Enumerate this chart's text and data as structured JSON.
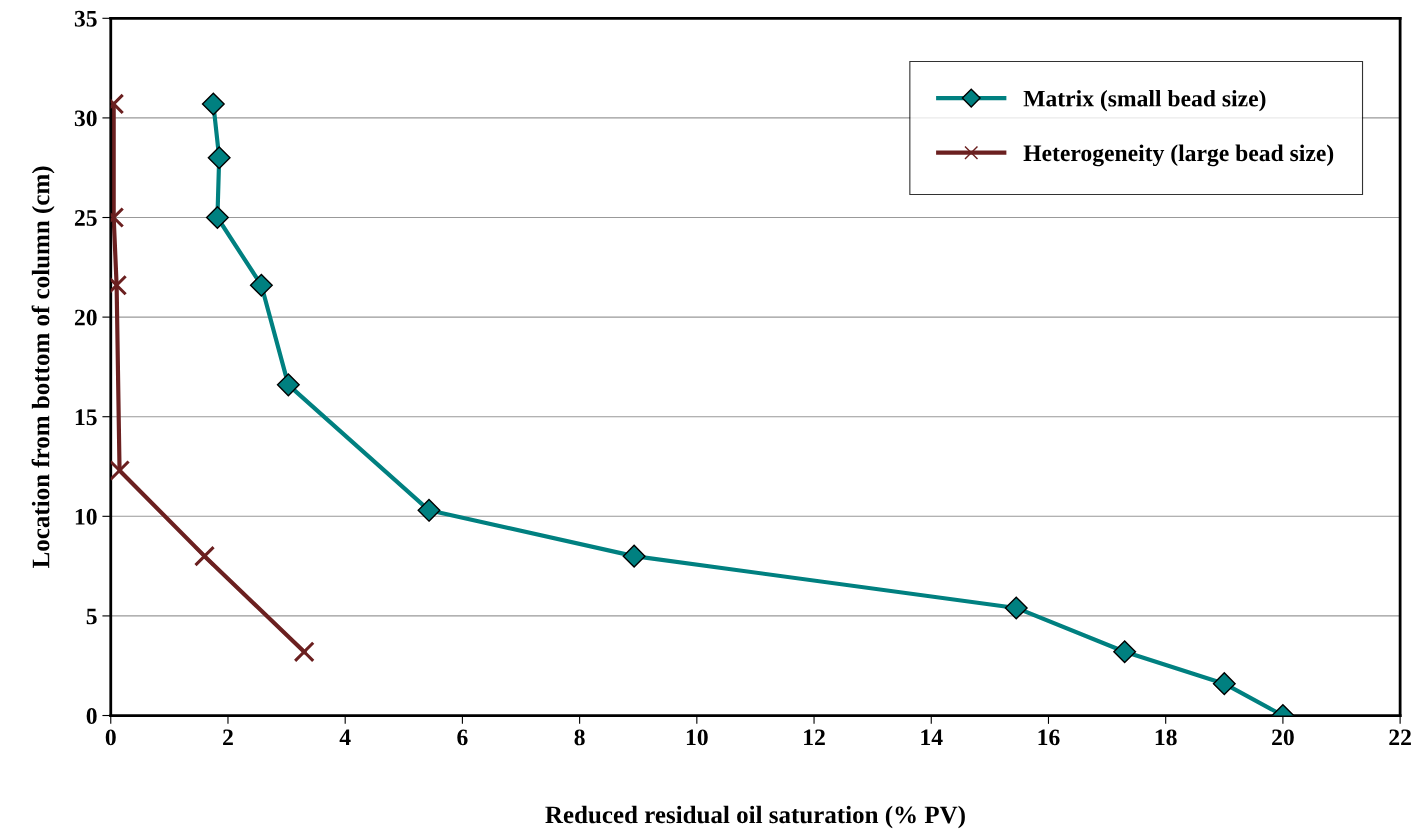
{
  "chart_data": {
    "type": "line",
    "xlabel": "Reduced residual oil saturation (% PV)",
    "ylabel": "Location from bottom of column (cm)",
    "xlim": [
      0,
      22
    ],
    "xticks": [
      0,
      2,
      4,
      6,
      8,
      10,
      12,
      14,
      16,
      18,
      20,
      22
    ],
    "ylim": [
      0,
      35
    ],
    "yticks": [
      0,
      5,
      10,
      15,
      20,
      25,
      30,
      35
    ],
    "grid": "y",
    "legend": "top right",
    "series": [
      {
        "name": "Matrix (small bead size)",
        "color": "#008080",
        "marker": "diamond",
        "x": [
          1.75,
          1.85,
          1.82,
          2.57,
          3.03,
          5.43,
          8.93,
          15.45,
          17.3,
          19.0,
          20.0
        ],
        "values": [
          30.7,
          28.0,
          25.0,
          21.6,
          16.6,
          10.3,
          8.0,
          5.4,
          3.2,
          1.6,
          0.0
        ]
      },
      {
        "name": "Heterogeneity (large bead size)",
        "color": "#6b2020",
        "marker": "cross",
        "x": [
          0.05,
          0.05,
          0.1,
          0.15,
          1.6,
          3.3
        ],
        "values": [
          30.7,
          25.0,
          21.6,
          12.3,
          8.0,
          3.2
        ]
      }
    ]
  }
}
